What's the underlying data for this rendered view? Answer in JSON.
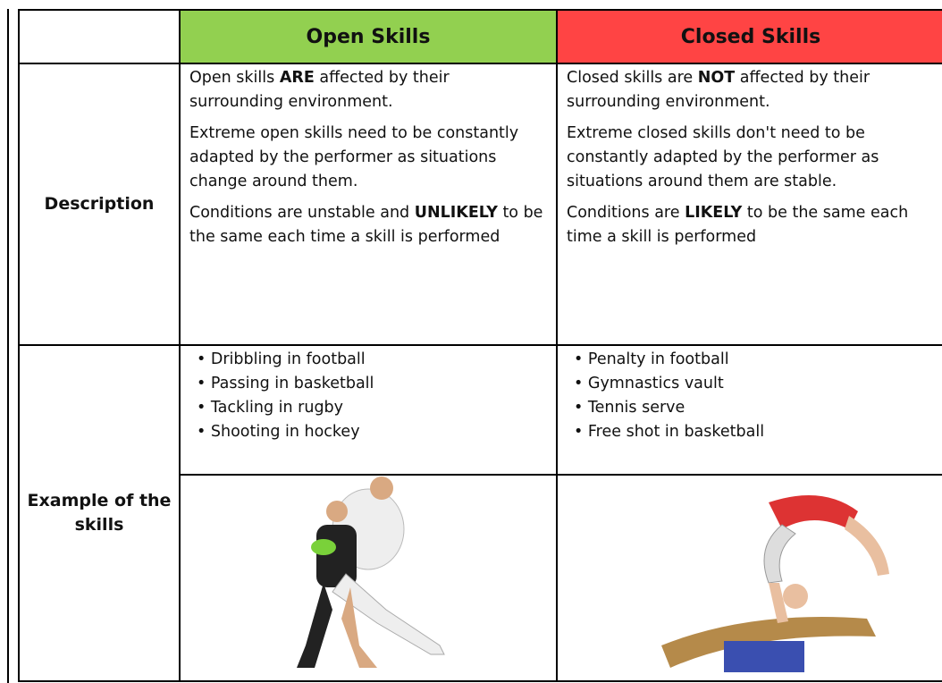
{
  "table": {
    "columns": [
      "Open Skills",
      "Closed Skills"
    ],
    "description": {
      "label": "Description",
      "open": [
        [
          "Open skills ",
          "ARE",
          " affected by their surrounding environment."
        ],
        [
          "Extreme open skills need to be constantly adapted by the performer as situations change around them."
        ],
        [
          "Conditions are unstable and ",
          "UNLIKELY",
          " to be the same each time a skill is performed"
        ]
      ],
      "closed": [
        [
          "Closed skills are ",
          "NOT",
          " affected by their surrounding environment."
        ],
        [
          "Extreme closed skills don't need to be constantly adapted by the performer as situations around them are stable."
        ],
        [
          "Conditions are ",
          "LIKELY",
          " to be the same each time a skill is performed"
        ]
      ]
    },
    "examples": {
      "label": "Example of the skills",
      "open": [
        "Dribbling in football",
        "Passing in basketball",
        "Tackling in rugby",
        "Shooting in hockey"
      ],
      "closed": [
        "Penalty in football",
        "Gymnastics vault",
        "Tennis serve",
        "Free shot in basketball"
      ]
    }
  }
}
